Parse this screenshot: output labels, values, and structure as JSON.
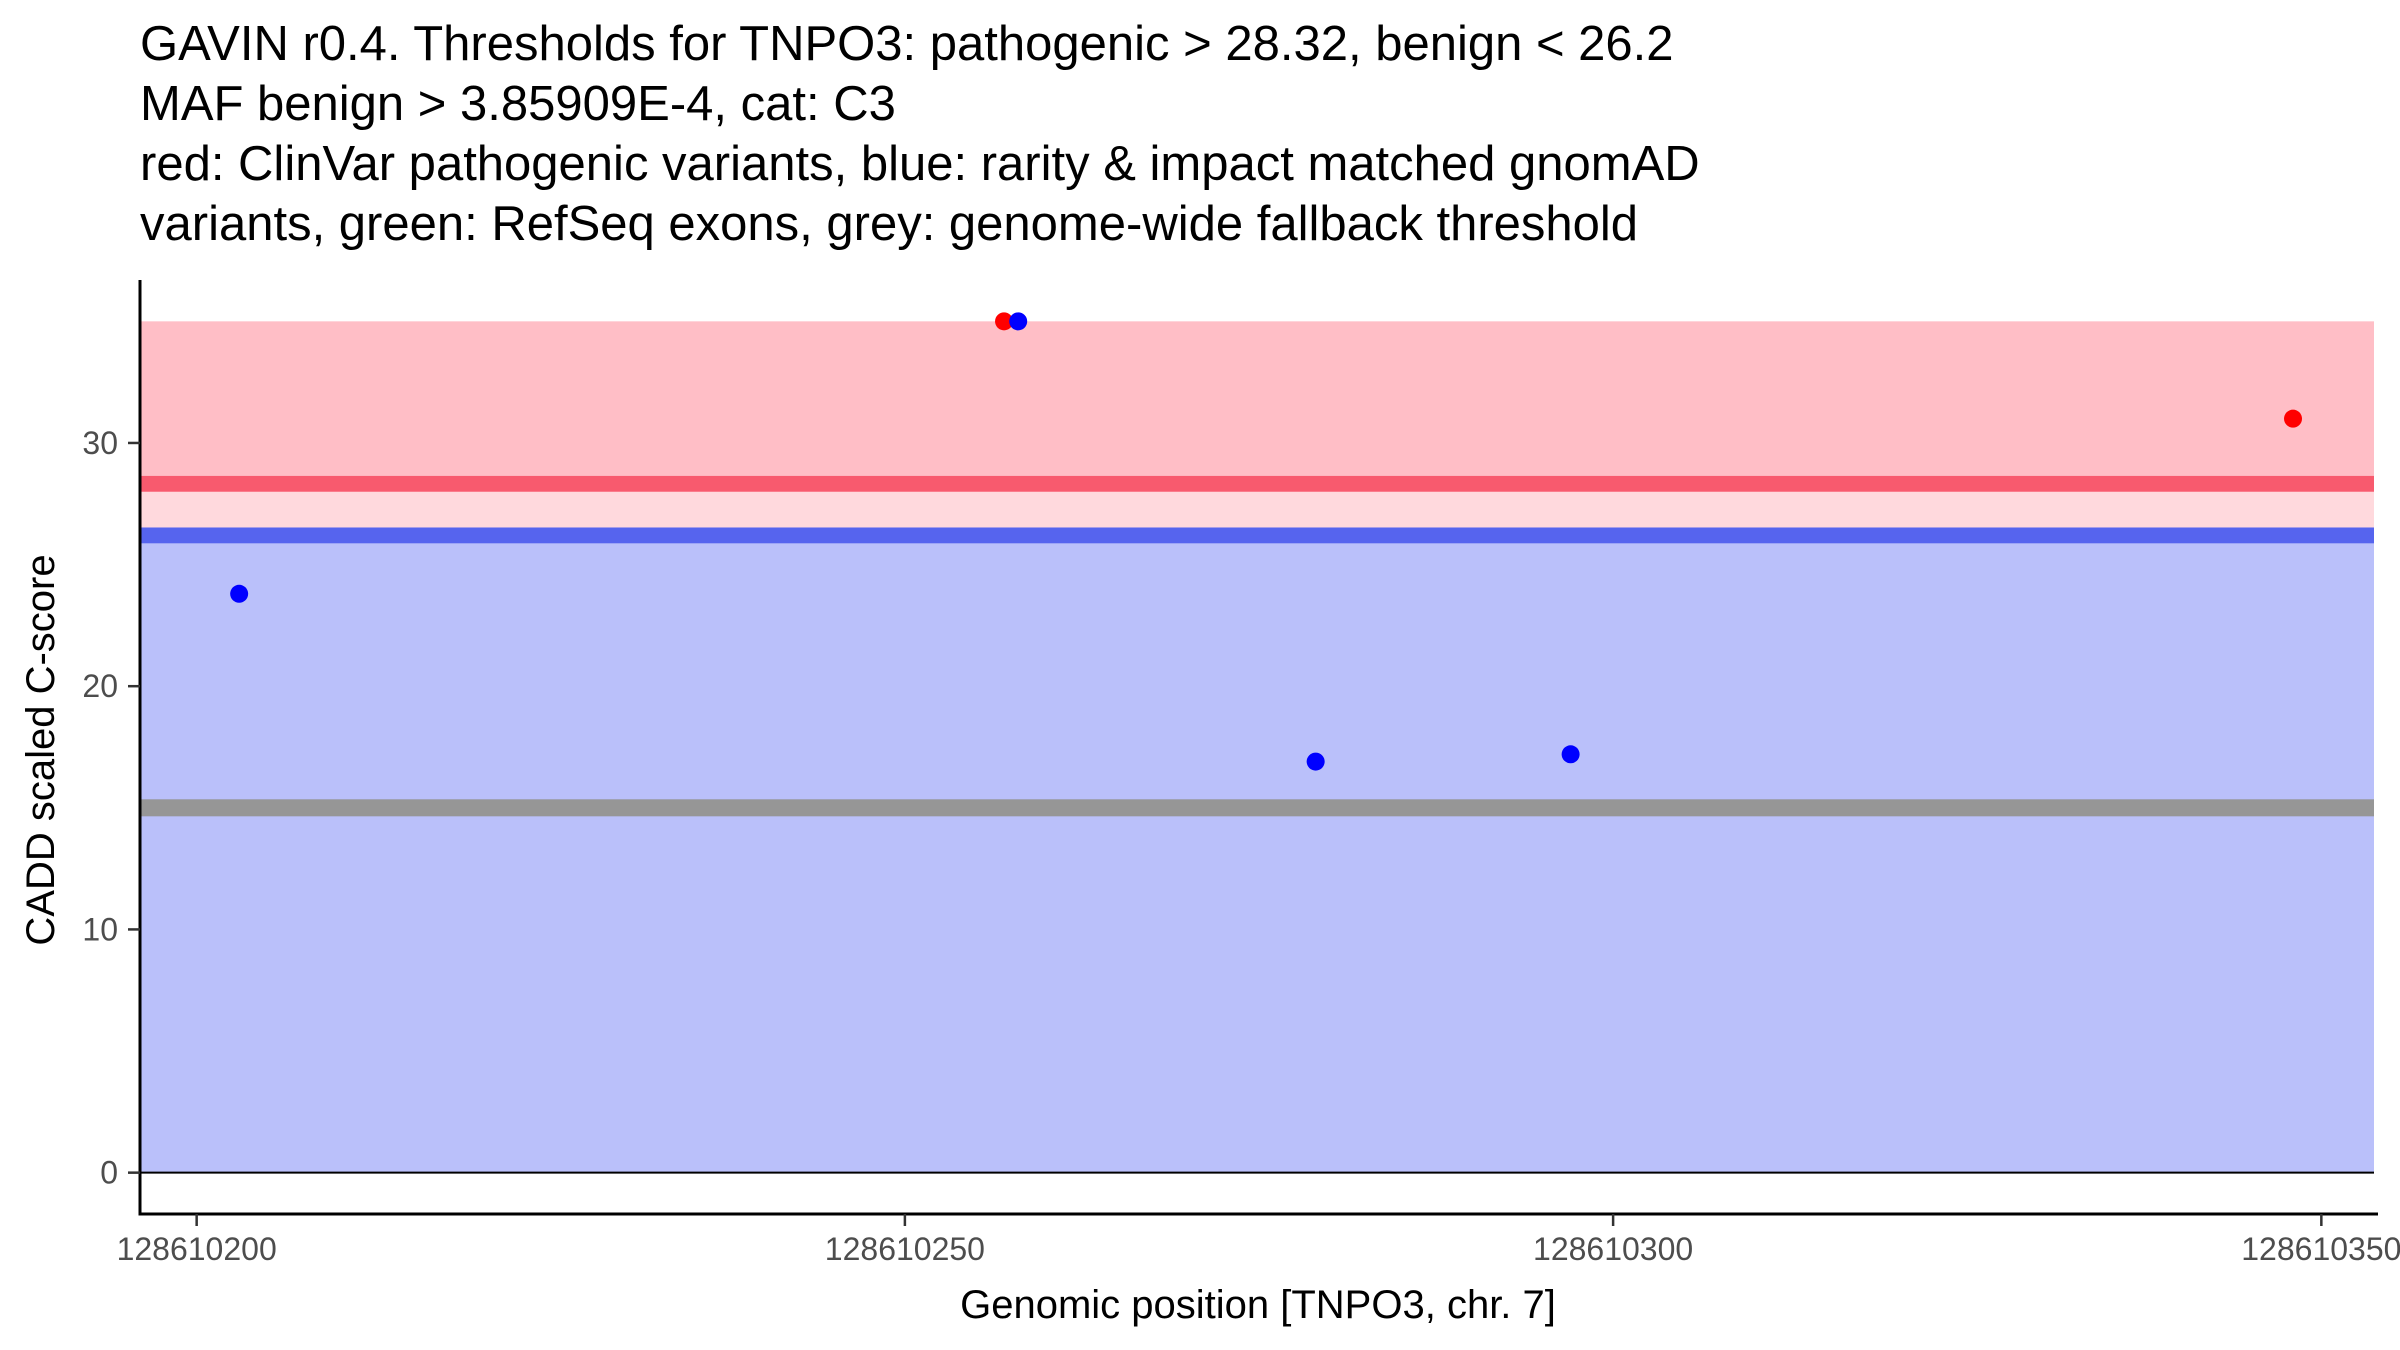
{
  "chart_data": {
    "type": "scatter",
    "title": [
      "GAVIN r0.4. Thresholds for TNPO3: pathogenic > 28.32, benign < 26.2",
      "MAF benign > 3.85909E-4, cat: C3",
      "red: ClinVar pathogenic variants, blue: rarity & impact matched gnomAD",
      "variants, green: RefSeq exons, grey: genome-wide fallback threshold"
    ],
    "xlabel": "Genomic position [TNPO3, chr. 7]",
    "ylabel": "CADD scaled C-score",
    "xlim": [
      128610196,
      128610354
    ],
    "ylim": [
      -1.7,
      36.7
    ],
    "x_ticks": [
      {
        "value": 128610200,
        "label": "128610200"
      },
      {
        "value": 128610250,
        "label": "128610250"
      },
      {
        "value": 128610300,
        "label": "128610300"
      },
      {
        "value": 128610350,
        "label": "128610350"
      }
    ],
    "y_ticks": [
      {
        "value": 0,
        "label": "0"
      },
      {
        "value": 10,
        "label": "10"
      },
      {
        "value": 20,
        "label": "20"
      },
      {
        "value": 30,
        "label": "30"
      }
    ],
    "grid": false,
    "regions": [
      {
        "name": "pathogenic-region",
        "ymin": 28.32,
        "ymax": 35,
        "color": "#ffbec6"
      },
      {
        "name": "gap-region",
        "ymin": 26.2,
        "ymax": 28.32,
        "color": "#ffd9dd"
      },
      {
        "name": "benign-region",
        "ymin": 0,
        "ymax": 26.2,
        "color": "#bac0fa"
      }
    ],
    "threshold_lines": [
      {
        "name": "pathogenic-threshold-line",
        "y": 28.32,
        "color": "#f85a6e",
        "width_data": 0.65
      },
      {
        "name": "benign-threshold-line",
        "y": 26.2,
        "color": "#5664ee",
        "width_data": 0.65
      },
      {
        "name": "fallback-threshold-line",
        "y": 15.0,
        "color": "#969696",
        "width_data": 0.7
      }
    ],
    "series": [
      {
        "name": "ClinVar pathogenic variants",
        "color": "#ff0000",
        "points": [
          {
            "x": 128610257,
            "y": 35.0
          },
          {
            "x": 128610348,
            "y": 31.0
          }
        ]
      },
      {
        "name": "rarity & impact matched gnomAD variants",
        "color": "#0000ff",
        "points": [
          {
            "x": 128610203,
            "y": 23.8
          },
          {
            "x": 128610258,
            "y": 35.0
          },
          {
            "x": 128610279,
            "y": 16.9
          },
          {
            "x": 128610297,
            "y": 17.2
          }
        ]
      }
    ]
  }
}
